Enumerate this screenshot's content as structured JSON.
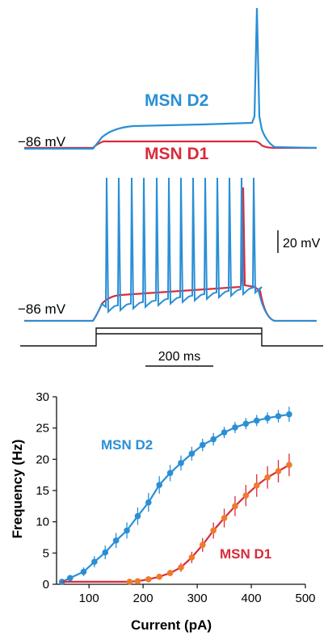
{
  "colors": {
    "d2": "#2a8fd6",
    "d1": "#d92b3a",
    "d1_marker": "#f07a2a",
    "axis": "#111111"
  },
  "traces": {
    "top_label_d2": "MSN D2",
    "top_label_d1": "MSN D1",
    "top_rmp": "−86 mV",
    "bottom_rmp": "−86 mV",
    "scale_voltage": "20 mV",
    "scale_time": "200 ms"
  },
  "chart_data": {
    "type": "line",
    "title": "",
    "xlabel": "Current (pA)",
    "ylabel": "Frequency (Hz)",
    "xlim": [
      40,
      500
    ],
    "ylim": [
      0,
      30
    ],
    "x_ticks": [
      "100",
      "200",
      "300",
      "400",
      "500"
    ],
    "y_ticks": [
      "0",
      "5",
      "10",
      "15",
      "20",
      "25",
      "30"
    ],
    "grid": false,
    "series": [
      {
        "name": "MSN D2",
        "x": [
          50,
          65,
          90,
          110,
          130,
          150,
          170,
          190,
          210,
          230,
          250,
          270,
          290,
          310,
          330,
          350,
          370,
          390,
          410,
          430,
          450,
          470
        ],
        "y": [
          0.4,
          1.0,
          2.0,
          3.6,
          5.1,
          7.0,
          8.6,
          10.9,
          13.1,
          15.9,
          17.8,
          19.4,
          20.9,
          22.3,
          23.2,
          24.3,
          25.1,
          25.7,
          26.2,
          26.6,
          26.9,
          27.2
        ],
        "err": [
          0.2,
          0.5,
          0.7,
          0.9,
          1.1,
          1.2,
          1.3,
          1.4,
          1.5,
          1.4,
          1.3,
          1.2,
          1.1,
          1.0,
          1.0,
          0.9,
          0.9,
          0.9,
          0.9,
          0.9,
          1.0,
          1.2
        ]
      },
      {
        "name": "MSN D1",
        "x": [
          50,
          175,
          190,
          210,
          230,
          250,
          270,
          290,
          310,
          330,
          350,
          370,
          390,
          410,
          430,
          450,
          470
        ],
        "y": [
          0.4,
          0.4,
          0.5,
          0.8,
          1.2,
          1.8,
          2.7,
          4.3,
          6.3,
          8.6,
          10.6,
          12.5,
          14.2,
          15.8,
          17.1,
          18.1,
          19.1
        ],
        "err": [
          0.1,
          0.1,
          0.2,
          0.3,
          0.4,
          0.5,
          0.7,
          0.9,
          1.1,
          1.3,
          1.5,
          1.6,
          1.7,
          1.8,
          1.8,
          1.8,
          1.8
        ]
      }
    ]
  }
}
